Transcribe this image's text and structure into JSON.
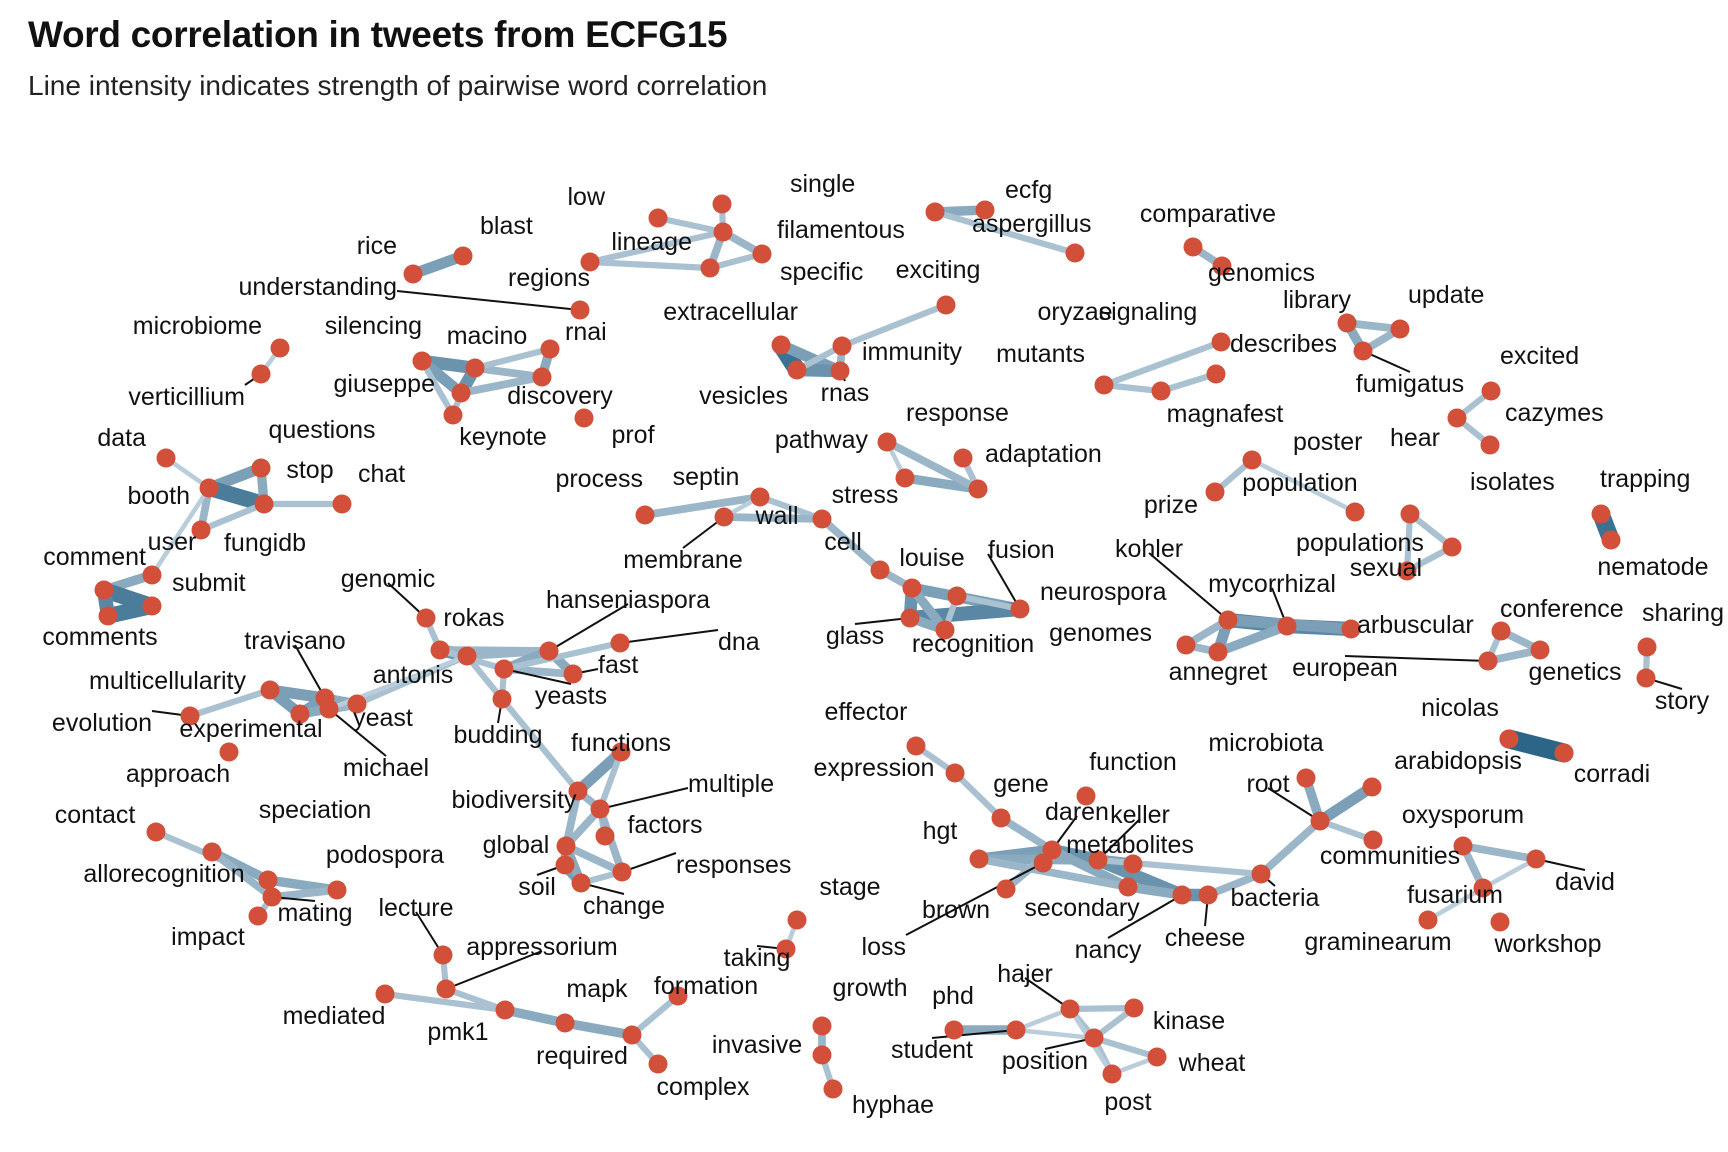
{
  "title": "Word correlation in tweets from ECFG15",
  "subtitle": "Line intensity indicates strength of pairwise word correlation",
  "colors": {
    "node": "#d2503a",
    "edge_strong": "#2b6689",
    "edge_weak": "#c9d8e3",
    "leader": "#111111"
  },
  "words": [
    "low",
    "single",
    "lineage",
    "filamentous",
    "specific",
    "regions",
    "ecfg",
    "aspergillus",
    "oryzae",
    "comparative",
    "genomics",
    "rice",
    "blast",
    "understanding",
    "rnai",
    "exciting",
    "extracellular",
    "immunity",
    "vesicles",
    "rnas",
    "signaling",
    "mutants",
    "magnafest",
    "describes",
    "library",
    "update",
    "fumigatus",
    "microbiome",
    "verticillium",
    "silencing",
    "macino",
    "giuseppe",
    "keynote",
    "discovery",
    "prof",
    "excited",
    "cazymes",
    "hear",
    "data",
    "questions",
    "booth",
    "stop",
    "chat",
    "fungidb",
    "user",
    "comment",
    "submit",
    "comments",
    "response",
    "pathway",
    "adaptation",
    "stress",
    "process",
    "septin",
    "wall",
    "membrane",
    "cell",
    "louise",
    "fusion",
    "neurospora",
    "glass",
    "recognition",
    "poster",
    "population",
    "prize",
    "isolates",
    "populations",
    "sexual",
    "trapping",
    "nematode",
    "kohler",
    "mycorrhizal",
    "arbuscular",
    "genomes",
    "annegret",
    "conference",
    "sharing",
    "european",
    "genetics",
    "story",
    "nicolas",
    "corradi",
    "genomic",
    "rokas",
    "hanseniaspora",
    "dna",
    "fast",
    "yeasts",
    "antonis",
    "budding",
    "travisano",
    "multicellularity",
    "evolution",
    "experimental",
    "yeast",
    "michael",
    "approach",
    "effector",
    "expression",
    "function",
    "gene",
    "microbiota",
    "root",
    "arabidopsis",
    "communities",
    "oxysporum",
    "david",
    "fusarium",
    "graminearum",
    "workshop",
    "hgt",
    "daren",
    "keller",
    "metabolites",
    "bacteria",
    "cheese",
    "nancy",
    "secondary",
    "brown",
    "loss",
    "functions",
    "biodiversity",
    "multiple",
    "factors",
    "global",
    "responses",
    "soil",
    "change",
    "contact",
    "speciation",
    "allorecognition",
    "podospora",
    "mating",
    "impact",
    "lecture",
    "appressorium",
    "mediated",
    "pmk1",
    "mapk",
    "formation",
    "required",
    "complex",
    "stage",
    "taking",
    "growth",
    "invasive",
    "hyphae",
    "phd",
    "hajer",
    "student",
    "position",
    "kinase",
    "wheat",
    "post"
  ]
}
